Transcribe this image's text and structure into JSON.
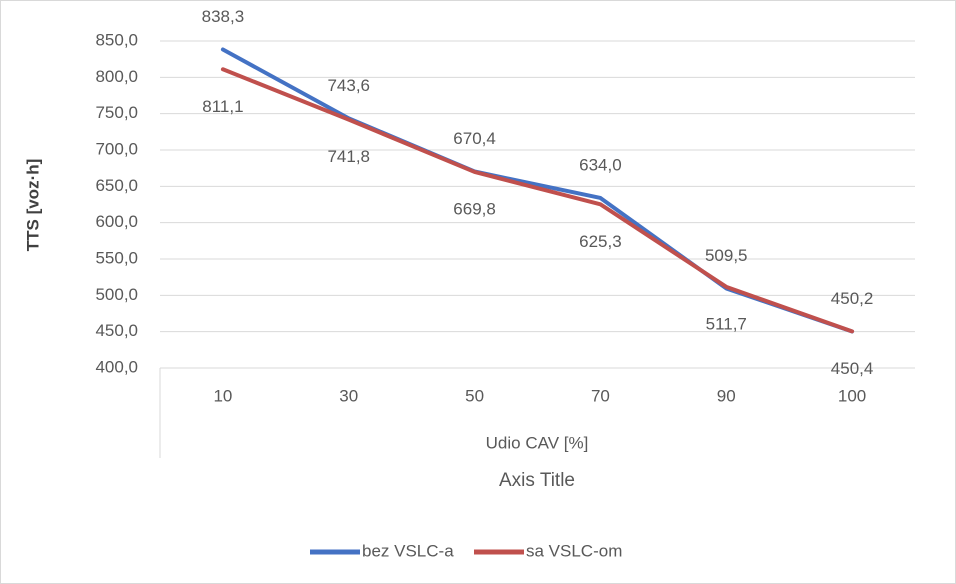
{
  "chart_data": {
    "type": "line",
    "y_label": "TTS [voz·h]",
    "x_group_label": "Udio CAV [%]",
    "x_label": "Axis Title",
    "categories": [
      "10",
      "30",
      "50",
      "70",
      "90",
      "100"
    ],
    "series": [
      {
        "name": "bez VSLC-a",
        "color": "#4472c4",
        "values": [
          838.3,
          743.6,
          670.4,
          634.0,
          509.5,
          450.2
        ],
        "value_labels": [
          "838,3",
          "743,6",
          "670,4",
          "634,0",
          "509,5",
          "450,2"
        ]
      },
      {
        "name": "sa VSLC-om",
        "color": "#c0504d",
        "values": [
          811.1,
          741.8,
          669.8,
          625.3,
          511.7,
          450.4
        ],
        "value_labels": [
          "811,1",
          "741,8",
          "669,8",
          "625,3",
          "511,7",
          "450,4"
        ]
      }
    ],
    "ylim": [
      400,
      850
    ],
    "yticks": [
      {
        "value": 400,
        "label": "400,0"
      },
      {
        "value": 450,
        "label": "450,0"
      },
      {
        "value": 500,
        "label": "500,0"
      },
      {
        "value": 550,
        "label": "550,0"
      },
      {
        "value": 600,
        "label": "600,0"
      },
      {
        "value": 650,
        "label": "650,0"
      },
      {
        "value": 700,
        "label": "700,0"
      },
      {
        "value": 750,
        "label": "750,0"
      },
      {
        "value": 800,
        "label": "800,0"
      },
      {
        "value": 850,
        "label": "850,0"
      }
    ],
    "grid": true,
    "legend": "bottom"
  }
}
